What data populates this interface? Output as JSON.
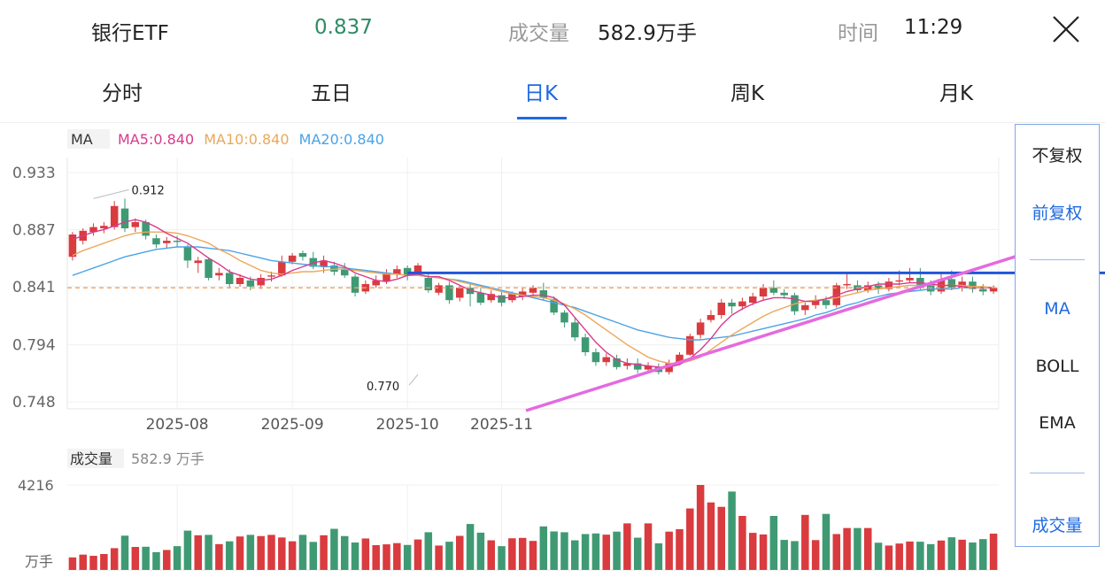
{
  "header": {
    "name": "银行ETF",
    "price": "0.837",
    "volume_label": "成交量",
    "volume_value": "582.9万手",
    "time_label": "时间",
    "time_value": "11:29"
  },
  "tabs": [
    {
      "label": "分时",
      "active": false
    },
    {
      "label": "五日",
      "active": false
    },
    {
      "label": "日K",
      "active": true
    },
    {
      "label": "周K",
      "active": false
    },
    {
      "label": "月K",
      "active": false
    }
  ],
  "side_panel": {
    "items": [
      "不复权",
      "前复权",
      "MA",
      "BOLL",
      "EMA",
      "成交量"
    ],
    "active": [
      "前复权",
      "MA",
      "成交量"
    ]
  },
  "colors": {
    "up": "#d93b3f",
    "down": "#3f9a74",
    "ma5": "#d83a8c",
    "ma10": "#eba85a",
    "ma20": "#4aa3e8",
    "accent": "#1f6ae0",
    "trendline": "#e46ae0",
    "hline": "#1f56d8",
    "price_line": "#f0a062"
  },
  "chart_data": [
    {
      "type": "candlestick",
      "legend": [
        {
          "label": "MA",
          "value": ""
        },
        {
          "label": "MA5",
          "value": "0.840"
        },
        {
          "label": "MA10",
          "value": "0.840"
        },
        {
          "label": "MA20",
          "value": "0.840"
        }
      ],
      "y_ticks": [
        "0.933",
        "0.887",
        "0.841",
        "0.794",
        "0.748"
      ],
      "ylim": [
        0.748,
        0.933
      ],
      "x_ticks": [
        {
          "label": "2025-08",
          "index": 10
        },
        {
          "label": "2025-09",
          "index": 21
        },
        {
          "label": "2025-10",
          "index": 32
        },
        {
          "label": "2025-11",
          "index": 41
        }
      ],
      "annotations": [
        {
          "text": "0.912",
          "index": 2,
          "value": 0.912
        },
        {
          "text": "0.770",
          "index": 33,
          "value": 0.77
        }
      ],
      "current_price": 0.84,
      "ohlc": [
        [
          0.865,
          0.883,
          0.885,
          0.862
        ],
        [
          0.878,
          0.886,
          0.888,
          0.875
        ],
        [
          0.885,
          0.889,
          0.892,
          0.882
        ],
        [
          0.888,
          0.89,
          0.893,
          0.884
        ],
        [
          0.889,
          0.906,
          0.91,
          0.887
        ],
        [
          0.904,
          0.888,
          0.912,
          0.885
        ],
        [
          0.889,
          0.893,
          0.896,
          0.885
        ],
        [
          0.893,
          0.882,
          0.895,
          0.879
        ],
        [
          0.88,
          0.875,
          0.883,
          0.872
        ],
        [
          0.876,
          0.878,
          0.881,
          0.872
        ],
        [
          0.878,
          0.877,
          0.882,
          0.873
        ],
        [
          0.873,
          0.862,
          0.875,
          0.856
        ],
        [
          0.86,
          0.862,
          0.865,
          0.852
        ],
        [
          0.863,
          0.848,
          0.864,
          0.846
        ],
        [
          0.85,
          0.852,
          0.856,
          0.846
        ],
        [
          0.852,
          0.843,
          0.855,
          0.84
        ],
        [
          0.843,
          0.848,
          0.851,
          0.841
        ],
        [
          0.846,
          0.841,
          0.849,
          0.838
        ],
        [
          0.842,
          0.848,
          0.851,
          0.839
        ],
        [
          0.849,
          0.85,
          0.853,
          0.845
        ],
        [
          0.85,
          0.861,
          0.866,
          0.849
        ],
        [
          0.861,
          0.866,
          0.868,
          0.859
        ],
        [
          0.868,
          0.865,
          0.87,
          0.862
        ],
        [
          0.864,
          0.857,
          0.869,
          0.855
        ],
        [
          0.857,
          0.862,
          0.866,
          0.852
        ],
        [
          0.858,
          0.853,
          0.861,
          0.85
        ],
        [
          0.855,
          0.85,
          0.86,
          0.848
        ],
        [
          0.849,
          0.836,
          0.851,
          0.833
        ],
        [
          0.837,
          0.843,
          0.846,
          0.835
        ],
        [
          0.842,
          0.846,
          0.85,
          0.84
        ],
        [
          0.845,
          0.852,
          0.855,
          0.843
        ],
        [
          0.851,
          0.855,
          0.858,
          0.848
        ],
        [
          0.856,
          0.85,
          0.858,
          0.846
        ],
        [
          0.852,
          0.858,
          0.86,
          0.85
        ],
        [
          0.848,
          0.838,
          0.852,
          0.836
        ],
        [
          0.836,
          0.842,
          0.844,
          0.834
        ],
        [
          0.842,
          0.83,
          0.845,
          0.827
        ],
        [
          0.832,
          0.84,
          0.842,
          0.829
        ],
        [
          0.84,
          0.835,
          0.844,
          0.825
        ],
        [
          0.836,
          0.828,
          0.84,
          0.826
        ],
        [
          0.83,
          0.835,
          0.838,
          0.828
        ],
        [
          0.834,
          0.828,
          0.838,
          0.825
        ],
        [
          0.83,
          0.835,
          0.837,
          0.828
        ],
        [
          0.833,
          0.837,
          0.84,
          0.83
        ],
        [
          0.836,
          0.84,
          0.842,
          0.833
        ],
        [
          0.838,
          0.832,
          0.844,
          0.83
        ],
        [
          0.831,
          0.82,
          0.833,
          0.818
        ],
        [
          0.82,
          0.812,
          0.822,
          0.808
        ],
        [
          0.812,
          0.8,
          0.816,
          0.797
        ],
        [
          0.8,
          0.788,
          0.803,
          0.785
        ],
        [
          0.788,
          0.78,
          0.791,
          0.777
        ],
        [
          0.78,
          0.784,
          0.787,
          0.777
        ],
        [
          0.783,
          0.776,
          0.786,
          0.774
        ],
        [
          0.777,
          0.779,
          0.783,
          0.774
        ],
        [
          0.779,
          0.774,
          0.783,
          0.771
        ],
        [
          0.774,
          0.777,
          0.78,
          0.771
        ],
        [
          0.776,
          0.772,
          0.779,
          0.77
        ],
        [
          0.772,
          0.779,
          0.782,
          0.77
        ],
        [
          0.78,
          0.786,
          0.788,
          0.778
        ],
        [
          0.786,
          0.801,
          0.803,
          0.785
        ],
        [
          0.802,
          0.812,
          0.815,
          0.799
        ],
        [
          0.814,
          0.818,
          0.822,
          0.812
        ],
        [
          0.818,
          0.828,
          0.831,
          0.815
        ],
        [
          0.828,
          0.825,
          0.831,
          0.819
        ],
        [
          0.825,
          0.829,
          0.832,
          0.822
        ],
        [
          0.828,
          0.833,
          0.836,
          0.826
        ],
        [
          0.833,
          0.84,
          0.843,
          0.83
        ],
        [
          0.84,
          0.836,
          0.846,
          0.834
        ],
        [
          0.836,
          0.834,
          0.839,
          0.831
        ],
        [
          0.834,
          0.821,
          0.836,
          0.818
        ],
        [
          0.822,
          0.826,
          0.828,
          0.818
        ],
        [
          0.826,
          0.83,
          0.834,
          0.823
        ],
        [
          0.83,
          0.826,
          0.833,
          0.823
        ],
        [
          0.826,
          0.842,
          0.844,
          0.824
        ],
        [
          0.842,
          0.843,
          0.852,
          0.839
        ],
        [
          0.842,
          0.838,
          0.846,
          0.836
        ],
        [
          0.838,
          0.842,
          0.845,
          0.836
        ],
        [
          0.842,
          0.839,
          0.845,
          0.835
        ],
        [
          0.839,
          0.845,
          0.848,
          0.837
        ],
        [
          0.845,
          0.846,
          0.854,
          0.842
        ],
        [
          0.846,
          0.848,
          0.856,
          0.844
        ],
        [
          0.848,
          0.842,
          0.856,
          0.838
        ],
        [
          0.842,
          0.837,
          0.846,
          0.834
        ],
        [
          0.837,
          0.847,
          0.853,
          0.835
        ],
        [
          0.847,
          0.84,
          0.854,
          0.838
        ],
        [
          0.84,
          0.845,
          0.849,
          0.837
        ],
        [
          0.845,
          0.839,
          0.849,
          0.836
        ],
        [
          0.839,
          0.837,
          0.843,
          0.834
        ],
        [
          0.837,
          0.84,
          0.842,
          0.835
        ]
      ],
      "ma5": [
        0.879,
        0.882,
        0.885,
        0.887,
        0.89,
        0.893,
        0.895,
        0.893,
        0.889,
        0.884,
        0.88,
        0.876,
        0.87,
        0.864,
        0.859,
        0.853,
        0.85,
        0.847,
        0.846,
        0.847,
        0.85,
        0.854,
        0.857,
        0.86,
        0.862,
        0.86,
        0.857,
        0.852,
        0.849,
        0.846,
        0.845,
        0.847,
        0.85,
        0.851,
        0.849,
        0.849,
        0.846,
        0.842,
        0.838,
        0.836,
        0.834,
        0.832,
        0.832,
        0.833,
        0.834,
        0.834,
        0.832,
        0.826,
        0.816,
        0.806,
        0.796,
        0.788,
        0.782,
        0.779,
        0.778,
        0.777,
        0.776,
        0.776,
        0.778,
        0.783,
        0.79,
        0.799,
        0.81,
        0.818,
        0.823,
        0.827,
        0.83,
        0.832,
        0.832,
        0.831,
        0.829,
        0.829,
        0.831,
        0.834,
        0.837,
        0.839,
        0.841,
        0.843,
        0.843,
        0.843,
        0.844,
        0.844,
        0.843,
        0.842,
        0.842,
        0.841,
        0.84,
        0.84,
        0.84
      ],
      "ma10": [
        0.866,
        0.87,
        0.873,
        0.876,
        0.879,
        0.882,
        0.884,
        0.885,
        0.885,
        0.885,
        0.884,
        0.882,
        0.879,
        0.876,
        0.871,
        0.867,
        0.862,
        0.858,
        0.854,
        0.852,
        0.851,
        0.852,
        0.853,
        0.853,
        0.854,
        0.855,
        0.855,
        0.854,
        0.853,
        0.852,
        0.851,
        0.851,
        0.85,
        0.85,
        0.849,
        0.848,
        0.847,
        0.845,
        0.843,
        0.841,
        0.839,
        0.837,
        0.835,
        0.834,
        0.833,
        0.832,
        0.83,
        0.827,
        0.823,
        0.818,
        0.812,
        0.806,
        0.8,
        0.794,
        0.789,
        0.784,
        0.781,
        0.779,
        0.779,
        0.781,
        0.784,
        0.79,
        0.796,
        0.802,
        0.807,
        0.812,
        0.817,
        0.821,
        0.824,
        0.827,
        0.829,
        0.83,
        0.831,
        0.832,
        0.834,
        0.836,
        0.838,
        0.839,
        0.84,
        0.841,
        0.842,
        0.842,
        0.843,
        0.842,
        0.842,
        0.842,
        0.841,
        0.841,
        0.84
      ],
      "ma20": [
        0.85,
        0.853,
        0.856,
        0.859,
        0.862,
        0.865,
        0.867,
        0.869,
        0.871,
        0.872,
        0.873,
        0.873,
        0.873,
        0.872,
        0.871,
        0.87,
        0.868,
        0.866,
        0.864,
        0.862,
        0.861,
        0.86,
        0.859,
        0.858,
        0.857,
        0.857,
        0.856,
        0.855,
        0.854,
        0.853,
        0.852,
        0.851,
        0.85,
        0.85,
        0.849,
        0.848,
        0.847,
        0.846,
        0.844,
        0.842,
        0.84,
        0.838,
        0.836,
        0.834,
        0.832,
        0.83,
        0.828,
        0.826,
        0.824,
        0.821,
        0.818,
        0.815,
        0.812,
        0.809,
        0.806,
        0.804,
        0.802,
        0.8,
        0.799,
        0.798,
        0.798,
        0.799,
        0.8,
        0.801,
        0.803,
        0.805,
        0.807,
        0.809,
        0.811,
        0.813,
        0.815,
        0.818,
        0.82,
        0.823,
        0.826,
        0.828,
        0.831,
        0.833,
        0.835,
        0.836,
        0.837,
        0.838,
        0.839,
        0.839,
        0.839,
        0.84,
        0.84,
        0.84,
        0.84
      ]
    },
    {
      "type": "bar",
      "legend": "成交量",
      "legend_value": "582.9 万手",
      "y_max_label": "4216",
      "y_unit": "万手",
      "ylim": [
        0,
        4216
      ],
      "values": [
        620,
        760,
        700,
        790,
        1080,
        1700,
        1140,
        1150,
        880,
        990,
        1180,
        1950,
        1720,
        1740,
        1280,
        1420,
        1660,
        1740,
        1680,
        1740,
        1610,
        1420,
        1740,
        1390,
        1720,
        2040,
        1680,
        1360,
        1560,
        1230,
        1270,
        1330,
        1240,
        1510,
        1870,
        1210,
        1400,
        1690,
        2280,
        1850,
        1470,
        1180,
        1570,
        1590,
        1440,
        2160,
        1910,
        1870,
        1470,
        1780,
        1810,
        1750,
        1900,
        2310,
        1600,
        2310,
        1320,
        1900,
        2020,
        3050,
        4216,
        3350,
        3130,
        3890,
        2680,
        1840,
        1760,
        2680,
        1490,
        1430,
        2730,
        1480,
        2780,
        1780,
        2080,
        2080,
        2080,
        1350,
        1210,
        1310,
        1410,
        1400,
        1280,
        1460,
        1620,
        1500,
        1360,
        1530,
        1800
      ]
    }
  ]
}
